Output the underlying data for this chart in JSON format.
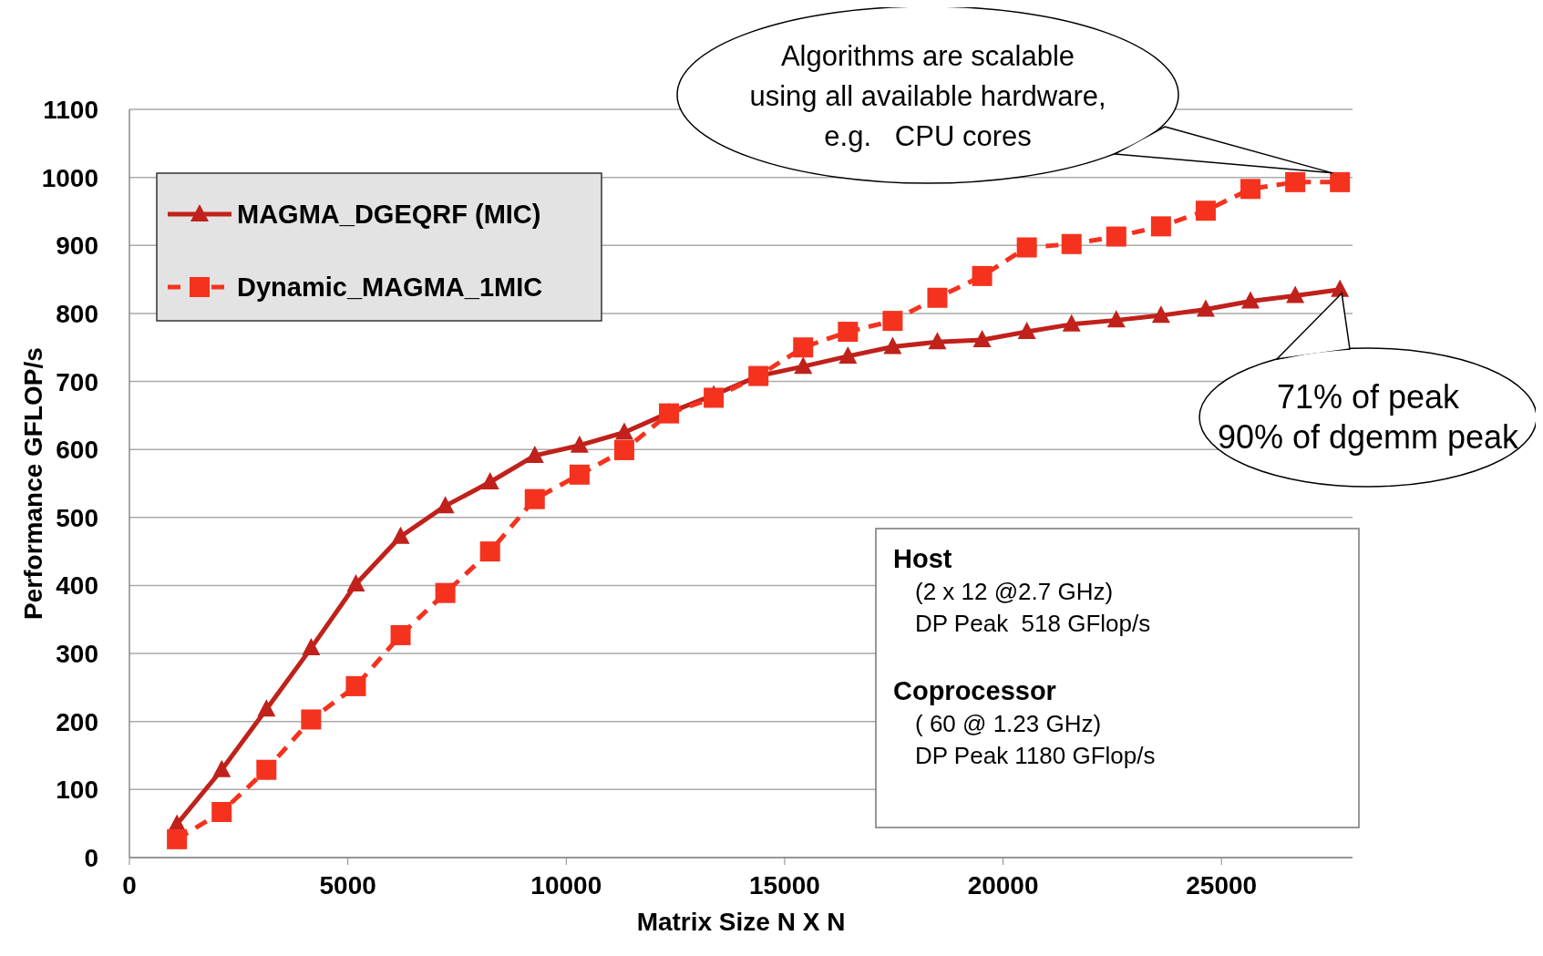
{
  "chart_data": {
    "type": "line",
    "xlabel": "Matrix Size N X N",
    "ylabel": "Performance GFLOP/s",
    "x": [
      1088,
      2112,
      3136,
      4160,
      5184,
      6208,
      7232,
      8256,
      9280,
      10304,
      11328,
      12352,
      13376,
      14400,
      15424,
      16448,
      17472,
      18496,
      19520,
      20544,
      21568,
      22592,
      23616,
      24640,
      25664,
      26688,
      27712
    ],
    "series": [
      {
        "name": "MAGMA_DGEQRF (MIC)",
        "color": "#c0211b",
        "marker": "triangle",
        "line_style": "solid",
        "values": [
          49,
          129,
          218,
          308,
          402,
          472,
          517,
          552,
          591,
          606,
          625,
          654,
          680,
          708,
          722,
          737,
          751,
          758,
          761,
          773,
          784,
          790,
          797,
          806,
          818,
          826,
          835
        ]
      },
      {
        "name": "Dynamic_MAGMA_1MIC",
        "color": "#f5321e",
        "marker": "square",
        "line_style": "dashed",
        "values": [
          27,
          67,
          129,
          203,
          252,
          327,
          389,
          450,
          527,
          563,
          599,
          653,
          676,
          708,
          750,
          773,
          789,
          823,
          855,
          897,
          902,
          913,
          928,
          951,
          983,
          993,
          993
        ]
      }
    ],
    "xlim": [
      0,
      28000
    ],
    "xticks": [
      0,
      5000,
      10000,
      15000,
      20000,
      25000
    ],
    "ylim": [
      0,
      1100
    ],
    "yticks": [
      0,
      100,
      200,
      300,
      400,
      500,
      600,
      700,
      800,
      900,
      1000,
      1100
    ],
    "grid": "y",
    "legend": "top left",
    "annotations": [
      "Algorithms are scalable using all available hardware, e.g.   CPU cores",
      {
        "text": "71% of peak 90% of dgemm peak",
        "x": 27712,
        "y": 835
      },
      "Host",
      "(2 x 12 @2.7 GHz)",
      "DP Peak  518 GFlop/s",
      "Coprocessor",
      "( 60 @ 1.23 GHz)",
      "DP Peak 1180 GFlop/s"
    ]
  }
}
